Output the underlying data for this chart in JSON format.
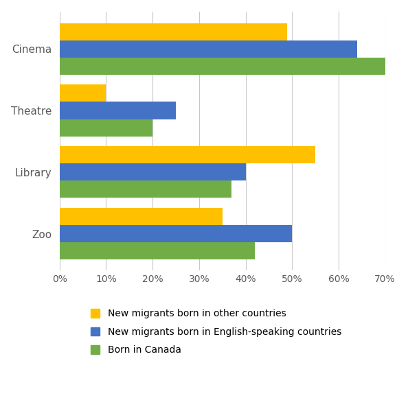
{
  "categories": [
    "Cinema",
    "Theatre",
    "Library",
    "Zoo"
  ],
  "series": [
    {
      "label": "New migrants born in other countries",
      "color": "#FFC000",
      "values": [
        49,
        10,
        55,
        35
      ]
    },
    {
      "label": "New migrants born in English-speaking countries",
      "color": "#4472C4",
      "values": [
        64,
        25,
        40,
        50
      ]
    },
    {
      "label": "Born in Canada",
      "color": "#70AD47",
      "values": [
        70,
        20,
        37,
        42
      ]
    }
  ],
  "xlim": [
    0,
    70
  ],
  "xticks": [
    0,
    10,
    20,
    30,
    40,
    50,
    60,
    70
  ],
  "xtick_labels": [
    "0%",
    "10%",
    "20%",
    "30%",
    "40%",
    "50%",
    "60%",
    "70%"
  ],
  "bar_height": 0.28,
  "background_color": "#FFFFFF",
  "grid_color": "#C8C8C8",
  "legend_fontsize": 10,
  "tick_fontsize": 10,
  "label_fontsize": 11
}
